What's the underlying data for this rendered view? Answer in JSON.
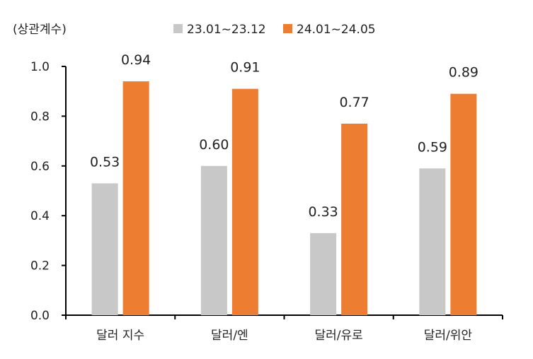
{
  "chart_data": {
    "type": "bar",
    "unit_label": "(상관계수)",
    "categories": [
      "달러 지수",
      "달러/엔",
      "달러/유로",
      "달러/위안"
    ],
    "series": [
      {
        "name": "23.01~23.12",
        "color": "#c8c8c8",
        "values": [
          0.53,
          0.6,
          0.33,
          0.59
        ]
      },
      {
        "name": "24.01~24.05",
        "color": "#ed7d31",
        "values": [
          0.94,
          0.91,
          0.77,
          0.89
        ]
      }
    ],
    "value_labels": [
      [
        "0.53",
        "0.60",
        "0.33",
        "0.59"
      ],
      [
        "0.94",
        "0.91",
        "0.77",
        "0.89"
      ]
    ],
    "ylim": [
      0,
      1.0
    ],
    "yticks": [
      "0.0",
      "0.2",
      "0.4",
      "0.6",
      "0.8",
      "1.0"
    ],
    "legend_position": "top",
    "grid": false,
    "title": "",
    "xlabel": "",
    "ylabel": ""
  }
}
